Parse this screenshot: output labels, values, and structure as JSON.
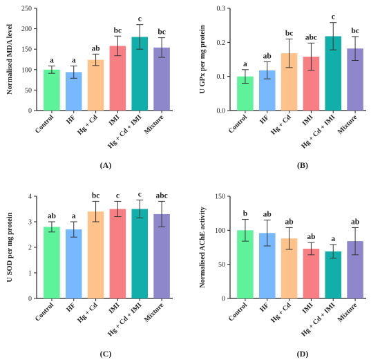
{
  "chart_data": [
    {
      "type": "bar",
      "panel_label": "(A)",
      "ylabel": "Normalised MDA level",
      "ylim": [
        0,
        250
      ],
      "yticks": [
        0,
        50,
        100,
        150,
        200,
        250
      ],
      "categories": [
        "Control",
        "HF",
        "Hg + Cd",
        "IMI",
        "Hg + Cd + IMI",
        "Mixture"
      ],
      "values": [
        100,
        94,
        124,
        158,
        180,
        154
      ],
      "errors": [
        9,
        15,
        14,
        24,
        30,
        24
      ],
      "significance": [
        "a",
        "a",
        "ab",
        "bc",
        "c",
        "bc"
      ]
    },
    {
      "type": "bar",
      "panel_label": "(B)",
      "ylabel": "U GPx per mg protein",
      "ylim": [
        0,
        0.3
      ],
      "yticks": [
        0.0,
        0.1,
        0.2,
        0.3
      ],
      "categories": [
        "Control",
        "HF",
        "Hg + Cd",
        "IMI",
        "Hg + Cd + IMI",
        "Mixture"
      ],
      "values": [
        0.1,
        0.118,
        0.168,
        0.158,
        0.218,
        0.182
      ],
      "errors": [
        0.02,
        0.025,
        0.042,
        0.04,
        0.04,
        0.035
      ],
      "significance": [
        "a",
        "ab",
        "bc",
        "abc",
        "c",
        "bc"
      ]
    },
    {
      "type": "bar",
      "panel_label": "(C)",
      "ylabel": "U SOD per mg protein",
      "ylim": [
        0,
        4
      ],
      "yticks": [
        0,
        1,
        2,
        3,
        4
      ],
      "categories": [
        "Control",
        "HF",
        "Hg + Cd",
        "IMI",
        "Hg + Cd + IMI",
        "Mixture"
      ],
      "values": [
        2.8,
        2.7,
        3.4,
        3.5,
        3.5,
        3.3
      ],
      "errors": [
        0.2,
        0.3,
        0.4,
        0.3,
        0.35,
        0.5
      ],
      "significance": [
        "ab",
        "a",
        "bc",
        "c",
        "c",
        "abc"
      ]
    },
    {
      "type": "bar",
      "panel_label": "(D)",
      "ylabel": "Normalised AChE activity",
      "ylim": [
        0,
        150
      ],
      "yticks": [
        0,
        50,
        100,
        150
      ],
      "categories": [
        "Control",
        "HF",
        "Hg + Cd",
        "IMI",
        "Hg + Cd + IMI",
        "Mixture"
      ],
      "values": [
        100,
        96,
        88,
        73,
        69,
        84
      ],
      "errors": [
        16,
        19,
        16,
        9,
        10,
        20
      ],
      "significance": [
        "b",
        "ab",
        "ab",
        "ab",
        "a",
        "ab"
      ]
    }
  ],
  "colors": {
    "bars": [
      "#5ef29a",
      "#78b8ff",
      "#ffc28a",
      "#f77f84",
      "#12aeaa",
      "#8e87cc"
    ],
    "axis": "#222222",
    "error": "#333333"
  }
}
